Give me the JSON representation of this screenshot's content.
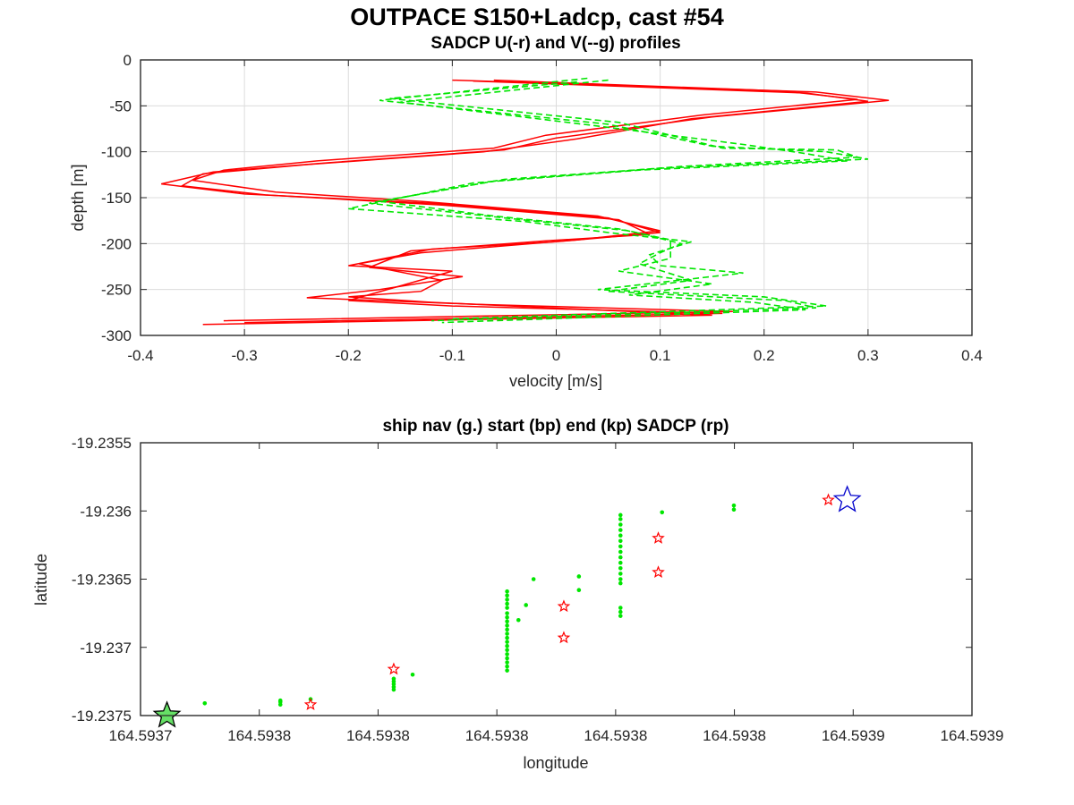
{
  "figure": {
    "suptitle": "OUTPACE S150+Ladcp, cast #54"
  },
  "chart_data": [
    {
      "type": "line",
      "title": "SADCP U(-r) and V(--g) profiles",
      "xlabel": "velocity [m/s]",
      "ylabel": "depth [m]",
      "xlim": [
        -0.4,
        0.4
      ],
      "ylim": [
        -300,
        0
      ],
      "x_ticks": [
        -0.4,
        -0.3,
        -0.2,
        -0.1,
        0,
        0.1,
        0.2,
        0.3,
        0.4
      ],
      "x_tick_labels": [
        "-0.4",
        "-0.3",
        "-0.2",
        "-0.1",
        "0",
        "0.1",
        "0.2",
        "0.3",
        "0.4"
      ],
      "y_ticks": [
        0,
        -50,
        -100,
        -150,
        -200,
        -250,
        -300
      ],
      "y_tick_labels": [
        "0",
        "-50",
        "-100",
        "-150",
        "-200",
        "-250",
        "-300"
      ],
      "grid": true,
      "series": [
        {
          "variable": "U",
          "color": "#ff0000",
          "style": "solid",
          "profiles": [
            [
              [
                -0.1,
                -22
              ],
              [
                0.25,
                -35
              ],
              [
                0.32,
                -44
              ],
              [
                0.15,
                -62
              ],
              [
                0.0,
                -85
              ],
              [
                -0.05,
                -98
              ],
              [
                -0.22,
                -112
              ],
              [
                -0.33,
                -122
              ],
              [
                -0.38,
                -135
              ],
              [
                -0.3,
                -146
              ],
              [
                -0.12,
                -156
              ],
              [
                0.05,
                -172
              ],
              [
                0.1,
                -188
              ],
              [
                0.0,
                -198
              ],
              [
                -0.12,
                -206
              ],
              [
                -0.2,
                -224
              ],
              [
                -0.1,
                -230
              ],
              [
                -0.15,
                -246
              ],
              [
                -0.2,
                -262
              ],
              [
                -0.1,
                -268
              ],
              [
                0.16,
                -276
              ],
              [
                -0.3,
                -286
              ]
            ],
            [
              [
                -0.08,
                -23
              ],
              [
                0.24,
                -36
              ],
              [
                0.3,
                -45
              ],
              [
                0.13,
                -64
              ],
              [
                0.02,
                -86
              ],
              [
                -0.07,
                -100
              ],
              [
                -0.24,
                -114
              ],
              [
                -0.34,
                -124
              ],
              [
                -0.36,
                -137
              ],
              [
                -0.28,
                -147
              ],
              [
                -0.11,
                -158
              ],
              [
                0.06,
                -174
              ],
              [
                0.09,
                -190
              ],
              [
                -0.01,
                -197
              ],
              [
                -0.14,
                -208
              ],
              [
                -0.18,
                -226
              ],
              [
                -0.09,
                -236
              ],
              [
                -0.17,
                -250
              ],
              [
                -0.24,
                -259
              ],
              [
                -0.08,
                -266
              ],
              [
                0.17,
                -274
              ],
              [
                -0.32,
                -284
              ]
            ],
            [
              [
                -0.06,
                -22
              ],
              [
                0.22,
                -34
              ],
              [
                0.29,
                -43
              ],
              [
                0.14,
                -60
              ],
              [
                -0.01,
                -82
              ],
              [
                -0.06,
                -96
              ],
              [
                -0.23,
                -110
              ],
              [
                -0.32,
                -120
              ],
              [
                -0.35,
                -131
              ],
              [
                -0.27,
                -144
              ],
              [
                -0.13,
                -154
              ],
              [
                0.04,
                -170
              ],
              [
                0.1,
                -186
              ],
              [
                0.02,
                -196
              ],
              [
                -0.13,
                -210
              ],
              [
                -0.19,
                -222
              ],
              [
                -0.11,
                -240
              ],
              [
                -0.13,
                -252
              ],
              [
                -0.2,
                -258
              ],
              [
                -0.12,
                -264
              ],
              [
                0.15,
                -278
              ],
              [
                -0.34,
                -288
              ]
            ]
          ]
        },
        {
          "variable": "V",
          "color": "#00e600",
          "style": "dashed",
          "profiles": [
            [
              [
                0.03,
                -20
              ],
              [
                -0.17,
                -44
              ],
              [
                0.05,
                -70
              ],
              [
                0.15,
                -94
              ],
              [
                0.26,
                -100
              ],
              [
                0.3,
                -108
              ],
              [
                0.1,
                -118
              ],
              [
                -0.05,
                -130
              ],
              [
                -0.18,
                -156
              ],
              [
                -0.05,
                -172
              ],
              [
                0.07,
                -186
              ],
              [
                0.12,
                -200
              ],
              [
                0.1,
                -210
              ],
              [
                0.08,
                -222
              ],
              [
                0.13,
                -240
              ],
              [
                0.05,
                -252
              ],
              [
                0.22,
                -262
              ],
              [
                0.25,
                -270
              ],
              [
                -0.12,
                -284
              ]
            ],
            [
              [
                0.05,
                -22
              ],
              [
                -0.15,
                -46
              ],
              [
                0.04,
                -72
              ],
              [
                0.18,
                -92
              ],
              [
                0.24,
                -102
              ],
              [
                0.28,
                -110
              ],
              [
                0.08,
                -120
              ],
              [
                -0.08,
                -134
              ],
              [
                -0.2,
                -162
              ],
              [
                -0.03,
                -176
              ],
              [
                0.05,
                -188
              ],
              [
                0.13,
                -198
              ],
              [
                0.09,
                -212
              ],
              [
                0.1,
                -224
              ],
              [
                0.18,
                -232
              ],
              [
                0.04,
                -250
              ],
              [
                0.2,
                -258
              ],
              [
                0.26,
                -268
              ],
              [
                -0.1,
                -282
              ]
            ],
            [
              [
                0.02,
                -24
              ],
              [
                -0.16,
                -42
              ],
              [
                0.06,
                -68
              ],
              [
                0.16,
                -96
              ],
              [
                0.27,
                -98
              ],
              [
                0.29,
                -106
              ],
              [
                0.12,
                -116
              ],
              [
                -0.06,
                -132
              ],
              [
                -0.17,
                -154
              ],
              [
                -0.06,
                -170
              ],
              [
                0.06,
                -184
              ],
              [
                0.11,
                -196
              ],
              [
                0.11,
                -216
              ],
              [
                0.06,
                -230
              ],
              [
                0.15,
                -244
              ],
              [
                0.07,
                -256
              ],
              [
                0.19,
                -264
              ],
              [
                0.24,
                -272
              ],
              [
                -0.11,
                -286
              ]
            ]
          ]
        }
      ]
    },
    {
      "type": "scatter",
      "title": "ship nav (g.) start (bp) end (kp) SADCP (rp)",
      "xlabel": "longitude",
      "ylabel": "latitude",
      "xlim": [
        164.59369,
        164.59391
      ],
      "ylim": [
        -19.2375,
        -19.2355
      ],
      "x_ticks": [
        164.5937,
        164.59373,
        164.59376,
        164.59379,
        164.59382,
        164.59385,
        164.59388,
        164.59391
      ],
      "x_tick_labels": [
        "164.5937",
        "164.5938",
        "164.5938",
        "164.5938",
        "164.5938",
        "164.5938",
        "164.5939",
        "164.5939"
      ],
      "y_ticks": [
        -19.2355,
        -19.236,
        -19.2365,
        -19.237,
        -19.2375
      ],
      "y_tick_labels": [
        "-19.2355",
        "-19.236",
        "-19.2365",
        "-19.237",
        "-19.2375"
      ],
      "grid": false,
      "series": [
        {
          "variable": "ship nav",
          "color": "#00e600",
          "marker": "dot",
          "points": [
            [
              164.593697,
              -19.23748
            ],
            [
              164.593707,
              -19.23741
            ],
            [
              164.593727,
              -19.23739
            ],
            [
              164.593727,
              -19.2374
            ],
            [
              164.593727,
              -19.23742
            ],
            [
              164.593735,
              -19.23738
            ],
            [
              164.593757,
              -19.23723
            ],
            [
              164.593757,
              -19.23725
            ],
            [
              164.593757,
              -19.23727
            ],
            [
              164.593757,
              -19.23729
            ],
            [
              164.593757,
              -19.23731
            ],
            [
              164.593762,
              -19.2372
            ],
            [
              164.593787,
              -19.23659
            ],
            [
              164.593787,
              -19.23662
            ],
            [
              164.593787,
              -19.23665
            ],
            [
              164.593787,
              -19.23668
            ],
            [
              164.593787,
              -19.23671
            ],
            [
              164.593787,
              -19.23675
            ],
            [
              164.593787,
              -19.23678
            ],
            [
              164.593787,
              -19.23681
            ],
            [
              164.593787,
              -19.23684
            ],
            [
              164.593787,
              -19.23687
            ],
            [
              164.593787,
              -19.2369
            ],
            [
              164.593787,
              -19.23693
            ],
            [
              164.593787,
              -19.23696
            ],
            [
              164.593787,
              -19.23699
            ],
            [
              164.593787,
              -19.23702
            ],
            [
              164.593787,
              -19.23705
            ],
            [
              164.593787,
              -19.23708
            ],
            [
              164.593787,
              -19.23711
            ],
            [
              164.593787,
              -19.23714
            ],
            [
              164.593787,
              -19.23717
            ],
            [
              164.59379,
              -19.2368
            ],
            [
              164.593792,
              -19.23669
            ],
            [
              164.593794,
              -19.2365
            ],
            [
              164.593817,
              -19.23603
            ],
            [
              164.593817,
              -19.23606
            ],
            [
              164.593817,
              -19.2361
            ],
            [
              164.593817,
              -19.23614
            ],
            [
              164.593817,
              -19.23618
            ],
            [
              164.593817,
              -19.23622
            ],
            [
              164.593817,
              -19.23626
            ],
            [
              164.593817,
              -19.2363
            ],
            [
              164.593817,
              -19.23634
            ],
            [
              164.593817,
              -19.23638
            ],
            [
              164.593817,
              -19.23642
            ],
            [
              164.593817,
              -19.23646
            ],
            [
              164.593817,
              -19.2365
            ],
            [
              164.593817,
              -19.23653
            ],
            [
              164.593817,
              -19.23671
            ],
            [
              164.593817,
              -19.23674
            ],
            [
              164.593817,
              -19.23677
            ],
            [
              164.593806,
              -19.23648
            ],
            [
              164.593806,
              -19.23658
            ],
            [
              164.593828,
              -19.23601
            ],
            [
              164.593847,
              -19.23596
            ],
            [
              164.593847,
              -19.23599
            ]
          ]
        },
        {
          "variable": "start",
          "color": "#0000cc",
          "marker": "star",
          "points": [
            [
              164.593877,
              -19.23592
            ]
          ]
        },
        {
          "variable": "end",
          "color": "#000000",
          "marker": "star",
          "points": [
            [
              164.593697,
              -19.2375
            ]
          ]
        },
        {
          "variable": "SADCP",
          "color": "#ff0000",
          "marker": "star",
          "points": [
            [
              164.593735,
              -19.23742
            ],
            [
              164.593757,
              -19.23716
            ],
            [
              164.593802,
              -19.2367
            ],
            [
              164.593802,
              -19.23693
            ],
            [
              164.593827,
              -19.2362
            ],
            [
              164.593827,
              -19.23645
            ],
            [
              164.593872,
              -19.23592
            ]
          ]
        }
      ]
    }
  ]
}
